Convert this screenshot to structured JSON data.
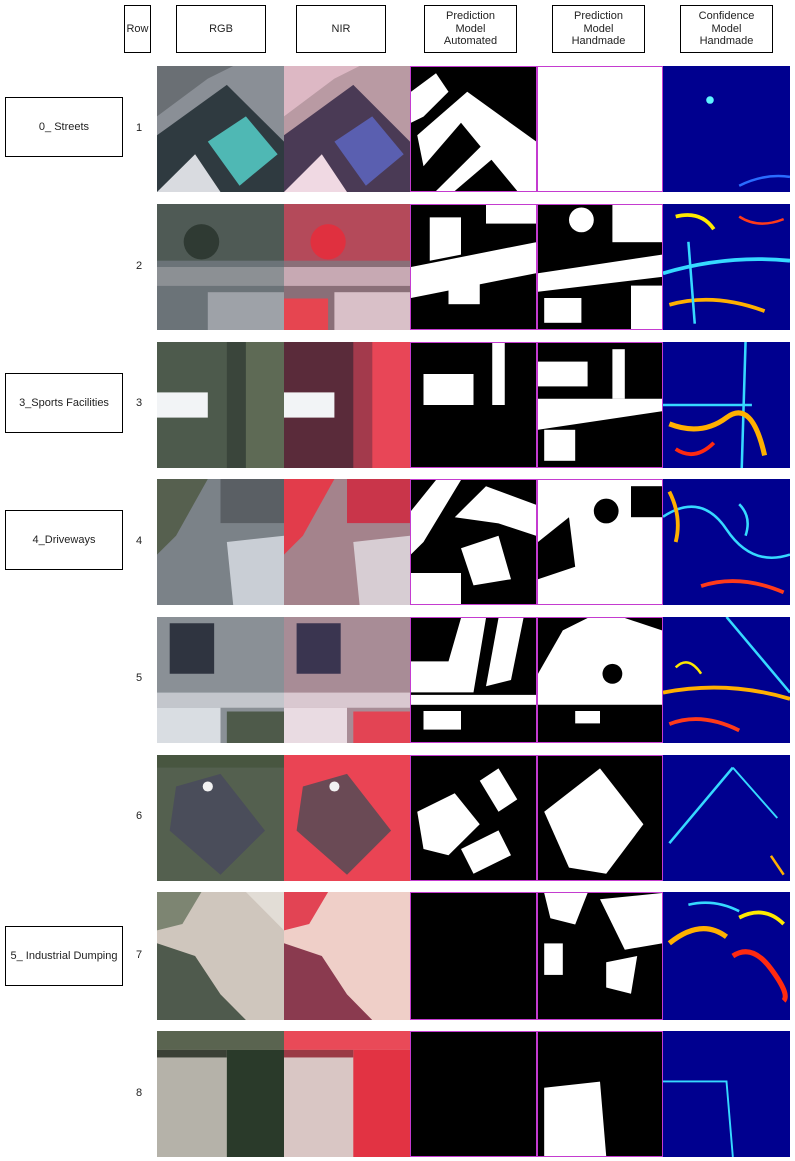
{
  "headers": {
    "row": "Row",
    "rgb": "RGB",
    "nir": "NIR",
    "pred_auto": "Prediction\nModel\nAutomated",
    "pred_hand": "Prediction\nModel\nHandmade",
    "conf_hand": "Confidence\nModel\nHandmade"
  },
  "categories": [
    {
      "label": "0_ Streets"
    },
    {
      "label": "3_Sports Facilities"
    },
    {
      "label": "4_Driveways"
    },
    {
      "label": "5_ Industrial Dumping"
    }
  ],
  "rows": [
    {
      "number": "1"
    },
    {
      "number": "2"
    },
    {
      "number": "3"
    },
    {
      "number": "4"
    },
    {
      "number": "5"
    },
    {
      "number": "6"
    },
    {
      "number": "7"
    },
    {
      "number": "8"
    }
  ],
  "colors": {
    "prediction_border": "#c43bd0",
    "mask_fg": "#ffffff",
    "mask_bg": "#000000",
    "confidence_bg": "#00008f"
  }
}
